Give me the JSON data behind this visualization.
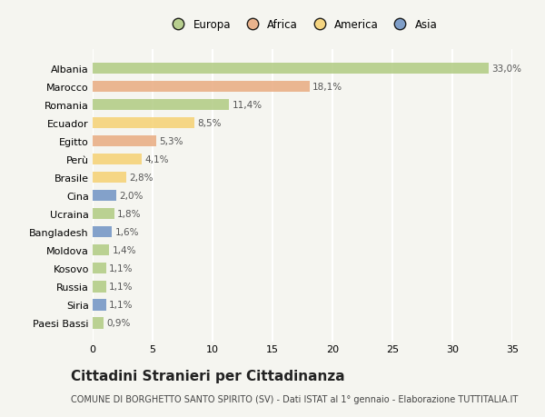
{
  "countries": [
    "Albania",
    "Marocco",
    "Romania",
    "Ecuador",
    "Egitto",
    "Perù",
    "Brasile",
    "Cina",
    "Ucraina",
    "Bangladesh",
    "Moldova",
    "Kosovo",
    "Russia",
    "Siria",
    "Paesi Bassi"
  ],
  "values": [
    33.0,
    18.1,
    11.4,
    8.5,
    5.3,
    4.1,
    2.8,
    2.0,
    1.8,
    1.6,
    1.4,
    1.1,
    1.1,
    1.1,
    0.9
  ],
  "labels": [
    "33,0%",
    "18,1%",
    "11,4%",
    "8,5%",
    "5,3%",
    "4,1%",
    "2,8%",
    "2,0%",
    "1,8%",
    "1,6%",
    "1,4%",
    "1,1%",
    "1,1%",
    "1,1%",
    "0,9%"
  ],
  "continents": [
    "Europa",
    "Africa",
    "Europa",
    "America",
    "Africa",
    "America",
    "America",
    "Asia",
    "Europa",
    "Asia",
    "Europa",
    "Europa",
    "Europa",
    "Asia",
    "Europa"
  ],
  "colors": {
    "Europa": "#aec97e",
    "Africa": "#e8a87c",
    "America": "#f5d06e",
    "Asia": "#6a8fc2"
  },
  "legend_order": [
    "Europa",
    "Africa",
    "America",
    "Asia"
  ],
  "title": "Cittadini Stranieri per Cittadinanza",
  "subtitle": "COMUNE DI BORGHETTO SANTO SPIRITO (SV) - Dati ISTAT al 1° gennaio - Elaborazione TUTTITALIA.IT",
  "xlim": [
    0,
    35
  ],
  "xticks": [
    0,
    5,
    10,
    15,
    20,
    25,
    30,
    35
  ],
  "background_color": "#f5f5f0",
  "grid_color": "#ffffff",
  "bar_height": 0.62,
  "label_fontsize": 7.5,
  "tick_fontsize": 8.0,
  "title_fontsize": 11,
  "subtitle_fontsize": 7.0,
  "legend_fontsize": 8.5
}
